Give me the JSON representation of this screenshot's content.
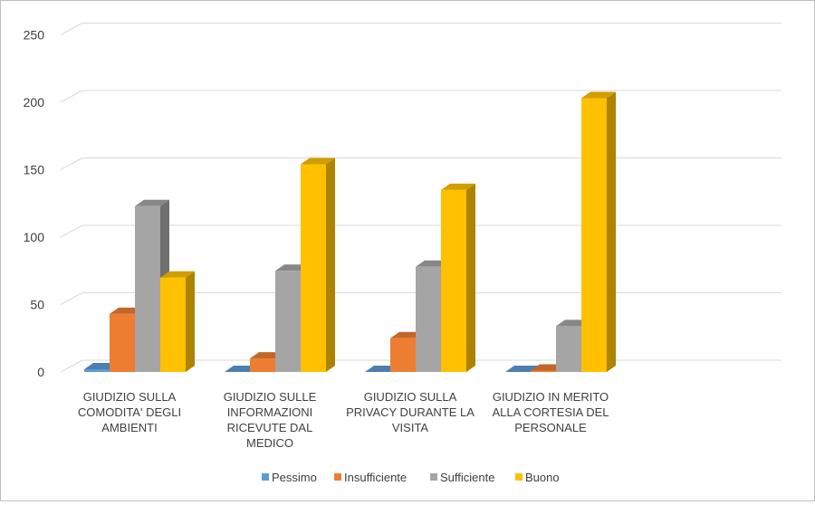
{
  "chart_data": {
    "type": "bar",
    "variant": "3d-clustered-column",
    "categories": [
      [
        "GIUDIZIO SULLA",
        "COMODITA' DEGLI",
        "AMBIENTI"
      ],
      [
        "GIUDIZIO SULLE",
        "INFORMAZIONI",
        "RICEVUTE DAL",
        "MEDICO"
      ],
      [
        "GIUDIZIO SULLA",
        "PRIVACY DURANTE LA",
        "VISITA"
      ],
      [
        "GIUDIZIO IN MERITO",
        "ALLA CORTESIA DEL",
        "PERSONALE"
      ]
    ],
    "series": [
      {
        "name": "Pessimo",
        "values": [
          2,
          0,
          0,
          0
        ],
        "color": "#5b9bd5"
      },
      {
        "name": "Insufficiente",
        "values": [
          43,
          10,
          25,
          1
        ],
        "color": "#ed7d31"
      },
      {
        "name": "Sufficiente",
        "values": [
          123,
          75,
          78,
          34
        ],
        "color": "#a5a5a5"
      },
      {
        "name": "Buono",
        "values": [
          70,
          154,
          135,
          203
        ],
        "color": "#ffc000"
      }
    ],
    "yticks": [
      "0",
      "50",
      "100",
      "150",
      "200",
      "250"
    ],
    "ylim": [
      0,
      250
    ],
    "grid": true,
    "legend": "bottom"
  }
}
